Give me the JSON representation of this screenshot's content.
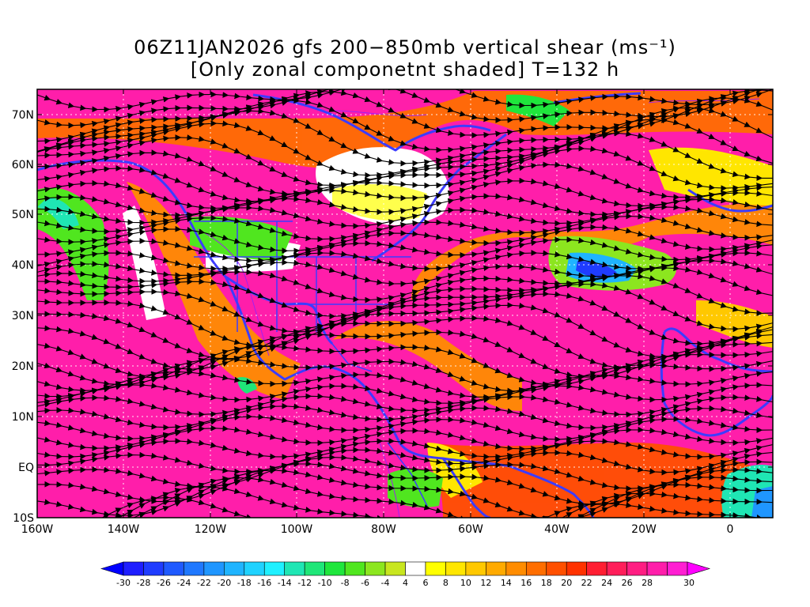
{
  "title": {
    "line1": "06Z11JAN2026 gfs 200−850mb vertical shear (ms⁻¹)",
    "line2": "[Only zonal componetnt shaded] T=132 h"
  },
  "lat_labels": [
    "70N",
    "60N",
    "50N",
    "40N",
    "30N",
    "20N",
    "10N",
    "EQ",
    "10S"
  ],
  "lon_labels": [
    "160W",
    "140W",
    "120W",
    "100W",
    "80W",
    "60W",
    "40W",
    "20W",
    "0"
  ],
  "colorbar": {
    "labels": [
      "-30",
      "-28",
      "-26",
      "-24",
      "-22",
      "-20",
      "-18",
      "-16",
      "-14",
      "-12",
      "-10",
      "-8",
      "-6",
      "-4",
      "4",
      "6",
      "8",
      "10",
      "12",
      "14",
      "16",
      "18",
      "20",
      "22",
      "24",
      "26",
      "28",
      "30"
    ],
    "colors": [
      "#1e1eff",
      "#1f3cff",
      "#1f5aff",
      "#1f78ff",
      "#1f96ff",
      "#1fb4ff",
      "#1fd2ff",
      "#1ff0ff",
      "#1fe6b4",
      "#1fe678",
      "#1fe63c",
      "#50e61f",
      "#8ce61f",
      "#c8e61f",
      "#ffffff",
      "#ffff00",
      "#ffe600",
      "#ffc800",
      "#ffaa00",
      "#ff8c00",
      "#ff6e00",
      "#ff5000",
      "#ff3200",
      "#ff1e32",
      "#ff1e5a",
      "#ff1e82",
      "#ff1eaa",
      "#ff1ed2"
    ],
    "low_color": "#0000ff",
    "high_color": "#ff00ff"
  }
}
